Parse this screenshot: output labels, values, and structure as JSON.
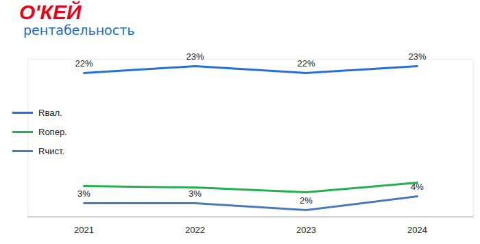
{
  "chart_data": {
    "type": "line",
    "title": "О'КЕЙ",
    "subtitle": "рентабельность",
    "categories": [
      "2021",
      "2022",
      "2023",
      "2024"
    ],
    "series": [
      {
        "name": "Rвал.",
        "color": "#2470d6",
        "values": [
          22,
          23,
          22,
          23
        ],
        "value_labels": [
          "22%",
          "23%",
          "22%",
          "23%"
        ],
        "data_labels": true
      },
      {
        "name": "Rопер.",
        "color": "#22b14c",
        "values": [
          5.5,
          5.3,
          4.6,
          6.0
        ],
        "data_labels": false
      },
      {
        "name": "Rчист.",
        "color": "#4a7ab8",
        "values": [
          3,
          3,
          2,
          4
        ],
        "value_labels": [
          "3%",
          "3%",
          "2%",
          "4%"
        ],
        "data_labels": true
      }
    ],
    "ylim": [
      1,
      24
    ],
    "yticks": [],
    "tick_labels": "x",
    "grid": false,
    "legend": "left"
  }
}
